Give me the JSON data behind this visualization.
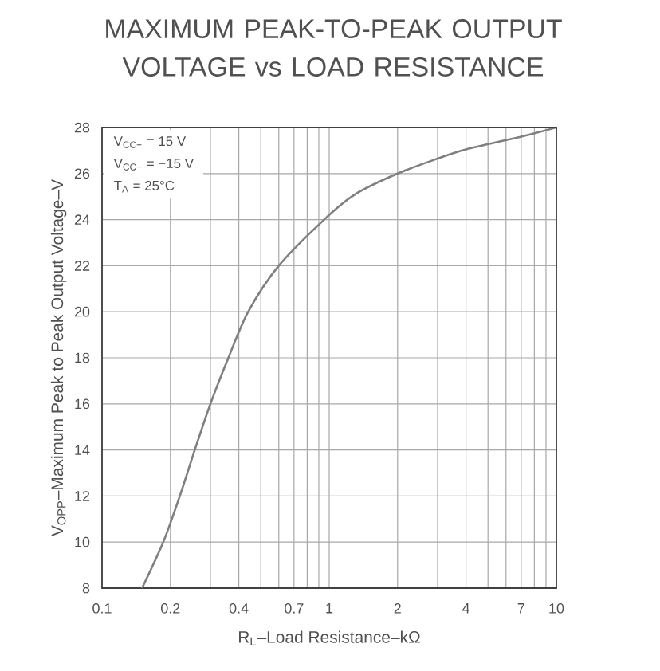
{
  "chart_data": {
    "type": "line",
    "title": "MAXIMUM PEAK-TO-PEAK OUTPUT VOLTAGE vs LOAD RESISTANCE",
    "xlabel": "R$_{L}$–Load Resistance–kΩ",
    "ylabel": "V$_{OPP}$–Maximum Peak to Peak Output Voltage–V",
    "annotations": [
      "V$_{CC+}$ = 15 V",
      "V$_{CC−}$ = −15 V",
      "T$_{A}$ = 25°C"
    ],
    "x": [
      0.15,
      0.186,
      0.22,
      0.256,
      0.3,
      0.36,
      0.44,
      0.6,
      0.95,
      1.3,
      2,
      3,
      4,
      7,
      10
    ],
    "series": [
      {
        "color": "#7f7f7f",
        "values": [
          8,
          10,
          12,
          14,
          16,
          18,
          20,
          22,
          24,
          25.1,
          26,
          26.65,
          27.05,
          27.6,
          28
        ]
      }
    ],
    "log": "x",
    "xlim": [
      0.1,
      10
    ],
    "ylim": [
      8,
      28
    ],
    "xticks": [
      0.1,
      0.2,
      {
        "value": 0.3,
        "label": null
      },
      0.4,
      {
        "value": 0.5,
        "label": null
      },
      {
        "value": 0.6,
        "label": null
      },
      0.7,
      {
        "value": 0.8,
        "label": null
      },
      {
        "value": 0.9,
        "label": null
      },
      1,
      2,
      {
        "value": 3,
        "label": null
      },
      4,
      {
        "value": 5,
        "label": null
      },
      {
        "value": 6,
        "label": null
      },
      7,
      {
        "value": 8,
        "label": null
      },
      {
        "value": 9,
        "label": null
      },
      10
    ],
    "yticks": [
      8,
      10,
      12,
      14,
      16,
      18,
      20,
      22,
      24,
      26,
      28
    ],
    "grid": true
  }
}
